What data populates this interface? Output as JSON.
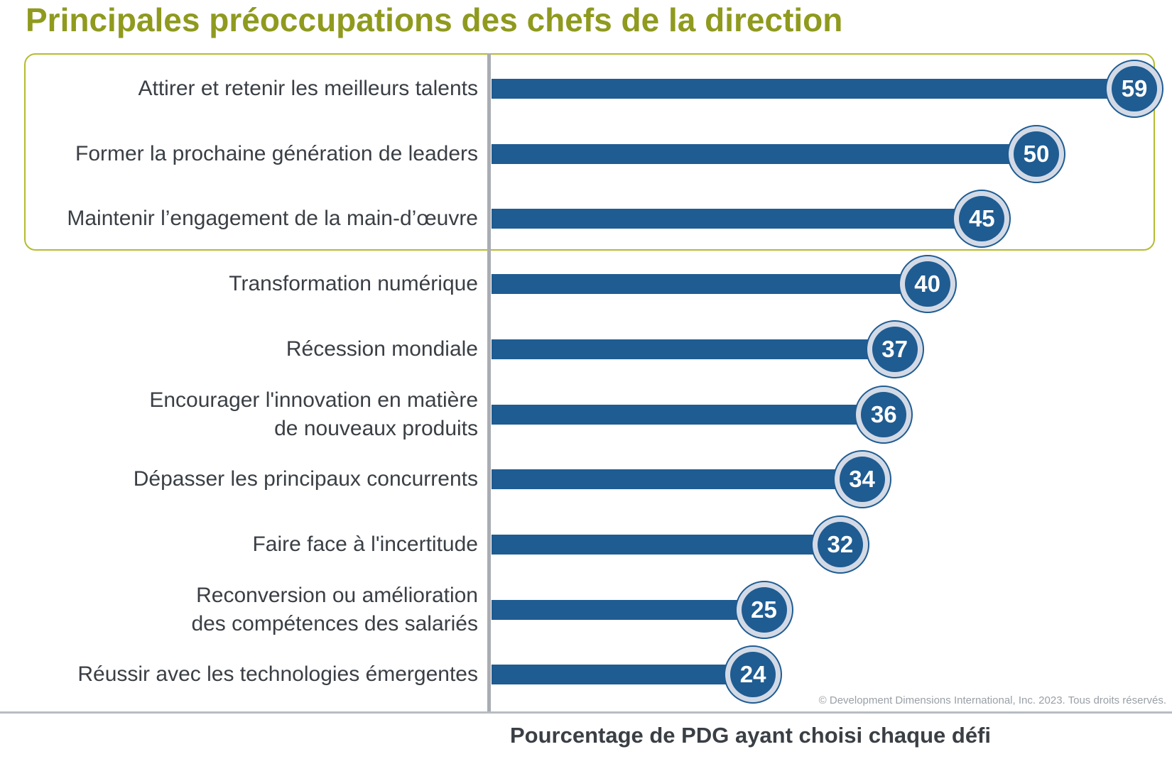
{
  "chart_data": {
    "type": "bar",
    "orientation": "horizontal",
    "title": "Principales préoccupations des chefs de la direction",
    "xlabel": "Pourcentage de PDG ayant choisi chaque défi",
    "categories": [
      [
        "Attirer et retenir les meilleurs talents"
      ],
      [
        "Former la prochaine génération de leaders"
      ],
      [
        "Maintenir l’engagement de la main-d’œuvre"
      ],
      [
        "Transformation numérique"
      ],
      [
        "Récession mondiale"
      ],
      [
        "Encourager l'innovation en matière",
        "de nouveaux produits"
      ],
      [
        "Dépasser les principaux concurrents"
      ],
      [
        "Faire face à l'incertitude"
      ],
      [
        "Reconversion ou amélioration",
        "des compétences des salariés"
      ],
      [
        "Réussir avec les technologies émergentes"
      ]
    ],
    "values": [
      59,
      50,
      45,
      40,
      37,
      36,
      34,
      32,
      25,
      24
    ],
    "highlighted_categories": 3,
    "colors": {
      "bar": "#1f5c92",
      "badge_ring": "#d3dae6",
      "highlight_border": "#b5bc2f",
      "title": "#8f9a1e"
    }
  },
  "footer": {
    "copyright": "© Development Dimensions International, Inc. 2023. Tous droits réservés."
  }
}
